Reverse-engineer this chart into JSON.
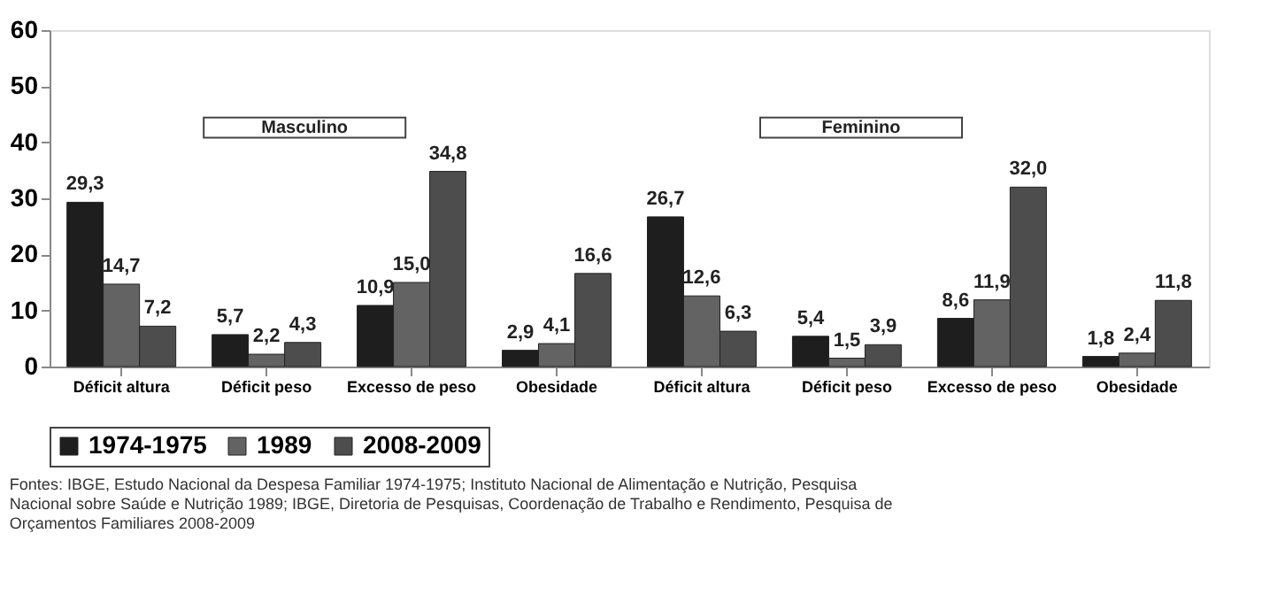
{
  "chart_data": {
    "type": "bar",
    "categories": [
      "Déficit altura",
      "Déficit peso",
      "Excesso de peso",
      "Obesidade",
      "Déficit altura",
      "Déficit peso",
      "Excesso de peso",
      "Obesidade"
    ],
    "series": [
      {
        "name": "1974-1975",
        "color": "#1e1e1e",
        "values": [
          29.3,
          5.7,
          10.9,
          2.9,
          26.7,
          5.4,
          8.6,
          1.8
        ],
        "value_labels": [
          "29,3",
          "5,7",
          "10,9",
          "2,9",
          "26,7",
          "5,4",
          "8,6",
          "1,8"
        ]
      },
      {
        "name": "1989",
        "color": "#636363",
        "values": [
          14.7,
          2.2,
          15.0,
          4.1,
          12.6,
          1.5,
          11.9,
          2.4
        ],
        "value_labels": [
          "14,7",
          "2,2",
          "15,0",
          "4,1",
          "12,6",
          "1,5",
          "11,9",
          "2,4"
        ]
      },
      {
        "name": "2008-2009",
        "color": "#4d4d4d",
        "values": [
          7.2,
          4.3,
          34.8,
          16.6,
          6.3,
          3.9,
          32.0,
          11.8
        ],
        "value_labels": [
          "7,2",
          "4,3",
          "34,8",
          "16,6",
          "6,3",
          "3,9",
          "32,0",
          "11,8"
        ]
      }
    ],
    "ylim": [
      0,
      60
    ],
    "yticks": [
      0,
      10,
      20,
      30,
      40,
      50,
      60
    ],
    "grid": false,
    "legend": "bottom",
    "annotations": [
      "Masculino",
      "Feminino",
      "Fontes: IBGE, Estudo Nacional da Despesa Familiar 1974-1975; Instituto Nacional de Alimentação e Nutrição, Pesquisa Nacional sobre Saúde e Nutrição 1989; IBGE, Diretoria de Pesquisas, Coordenação de Trabalho e Rendimento, Pesquisa de Orçamentos Familiares 2008-2009"
    ]
  }
}
